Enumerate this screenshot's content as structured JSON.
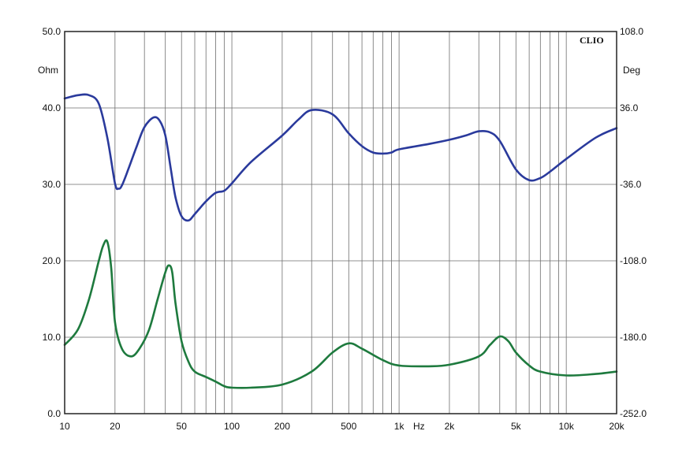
{
  "chart_data": {
    "type": "line",
    "brand": "CLIO",
    "x_axis": {
      "scale": "log",
      "unit": "Hz",
      "range": [
        10,
        20000
      ],
      "ticks": [
        {
          "value": 10,
          "label": "10"
        },
        {
          "value": 20,
          "label": "20"
        },
        {
          "value": 50,
          "label": "50"
        },
        {
          "value": 100,
          "label": "100"
        },
        {
          "value": 200,
          "label": "200"
        },
        {
          "value": 500,
          "label": "500"
        },
        {
          "value": 1000,
          "label": "1k"
        },
        {
          "value": 2000,
          "label": "2k"
        },
        {
          "value": 5000,
          "label": "5k"
        },
        {
          "value": 10000,
          "label": "10k"
        },
        {
          "value": 20000,
          "label": "20k"
        }
      ]
    },
    "y_left": {
      "unit": "Ohm",
      "range": [
        0,
        50
      ],
      "ticks": [
        {
          "value": 0,
          "label": "0.0"
        },
        {
          "value": 10,
          "label": "10.0"
        },
        {
          "value": 20,
          "label": "20.0"
        },
        {
          "value": 30,
          "label": "30.0"
        },
        {
          "value": 40,
          "label": "40.0"
        },
        {
          "value": 50,
          "label": "50.0"
        }
      ]
    },
    "y_right": {
      "unit": "Deg",
      "range": [
        -252,
        108
      ],
      "ticks": [
        {
          "value": -252,
          "label": "-252.0"
        },
        {
          "value": -180,
          "label": "-180.0"
        },
        {
          "value": -108,
          "label": "-108.0"
        },
        {
          "value": -36,
          "label": "-36.0"
        },
        {
          "value": 36,
          "label": "36.0"
        },
        {
          "value": 108,
          "label": "108.0"
        }
      ]
    },
    "grid": true,
    "series": [
      {
        "color": "#2a3a9c",
        "axis": "right",
        "x": [
          10,
          12,
          14,
          16,
          18,
          20,
          21,
          22,
          24,
          27,
          30,
          34,
          37,
          40,
          43,
          46,
          50,
          55,
          60,
          70,
          80,
          90,
          100,
          130,
          200,
          250,
          300,
          400,
          500,
          600,
          700,
          800,
          900,
          1000,
          1500,
          2000,
          2500,
          3000,
          3500,
          4000,
          5000,
          6000,
          7000,
          8000,
          10000,
          15000,
          20000
        ],
        "y": [
          45,
          48,
          48,
          40,
          8,
          -35,
          -40,
          -37,
          -22,
          0,
          18,
          27,
          24,
          10,
          -20,
          -48,
          -66,
          -70,
          -64,
          -52,
          -44,
          -42,
          -35,
          -15,
          10,
          25,
          34,
          30,
          12,
          0,
          -6,
          -7,
          -6,
          -3,
          2,
          6,
          10,
          14,
          13,
          5,
          -22,
          -32,
          -30,
          -24,
          -12,
          8,
          17
        ]
      },
      {
        "color": "#1e7a3e",
        "axis": "left",
        "x": [
          10,
          12,
          14,
          16,
          17,
          18,
          19,
          20,
          22,
          25,
          28,
          32,
          36,
          40,
          42,
          44,
          46,
          50,
          55,
          60,
          70,
          80,
          90,
          100,
          130,
          200,
          300,
          400,
          500,
          600,
          800,
          1000,
          1500,
          2000,
          3000,
          3500,
          4000,
          4500,
          5000,
          6000,
          7000,
          10000,
          15000,
          20000
        ],
        "y": [
          9,
          11,
          15,
          20,
          22,
          22.5,
          19,
          12,
          8.5,
          7.5,
          8.5,
          11,
          15,
          18.5,
          19.4,
          18.5,
          14.5,
          9.5,
          6.8,
          5.5,
          4.8,
          4.2,
          3.6,
          3.4,
          3.4,
          3.8,
          5.5,
          8,
          9.2,
          8.5,
          7,
          6.3,
          6.2,
          6.4,
          7.5,
          9,
          10.1,
          9.5,
          8,
          6.3,
          5.5,
          5,
          5.2,
          5.5
        ]
      }
    ]
  }
}
